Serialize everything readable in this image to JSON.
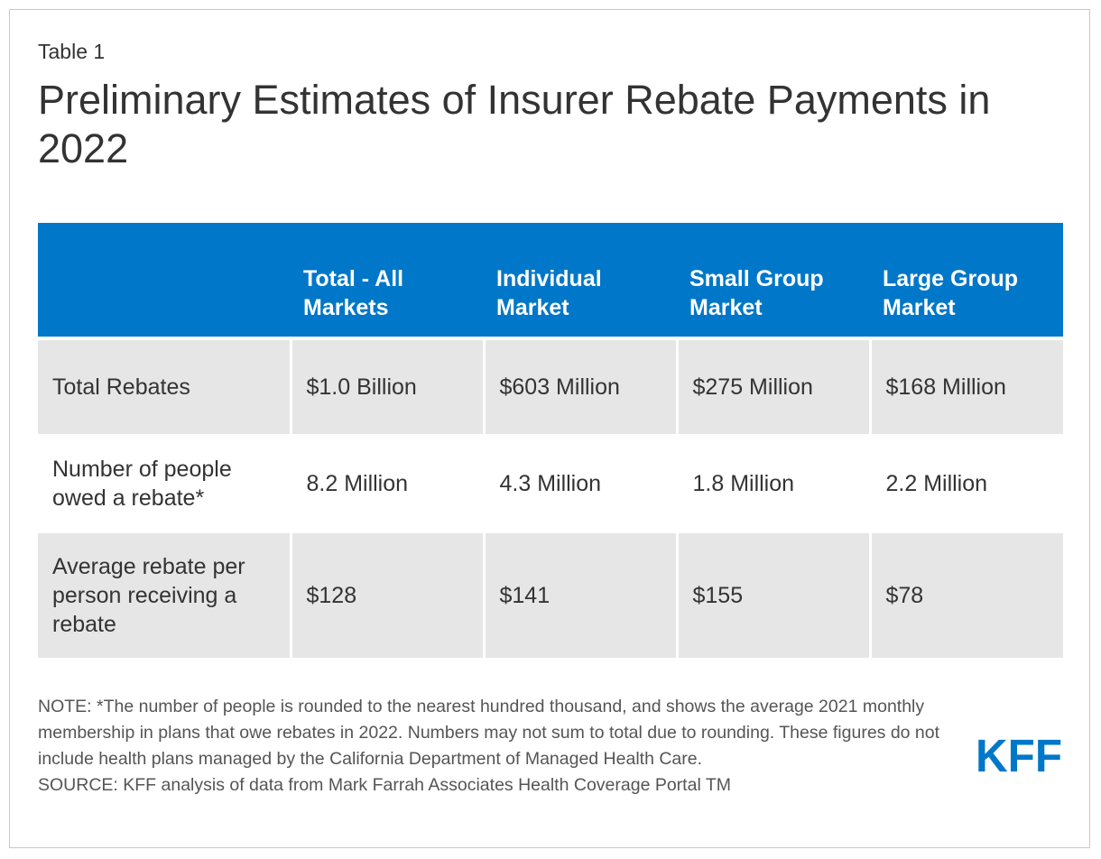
{
  "figure": {
    "label": "Table 1",
    "title": "Preliminary Estimates of Insurer Rebate Payments in 2022"
  },
  "table": {
    "headers": [
      "",
      "Total - All Markets",
      "Individual Market",
      "Small Group Market",
      "Large Group Market"
    ],
    "rows": [
      {
        "label": "Total Rebates",
        "cells": [
          "$1.0 Billion",
          "$603 Million",
          "$275 Million",
          "$168 Million"
        ]
      },
      {
        "label": "Number of people owed a rebate*",
        "cells": [
          "8.2 Million",
          "4.3 Million",
          "1.8 Million",
          "2.2 Million"
        ]
      },
      {
        "label": "Average rebate per person receiving a rebate",
        "cells": [
          "$128",
          "$141",
          "$155",
          "$78"
        ]
      }
    ]
  },
  "footer": {
    "note": "NOTE: *The number of people is rounded to the nearest hundred thousand, and shows the average 2021 monthly membership in plans that owe rebates in 2022.  Numbers may not sum to total due to rounding. These figures do not include health plans managed by the California Department of Managed Health Care.",
    "source": "SOURCE: KFF analysis of data from Mark Farrah Associates Health Coverage Portal TM",
    "logo_text": "KFF"
  },
  "colors": {
    "header_bg": "#0077c8",
    "row_bg": "#e6e6e6",
    "logo": "#0077c8",
    "text": "#333333"
  }
}
